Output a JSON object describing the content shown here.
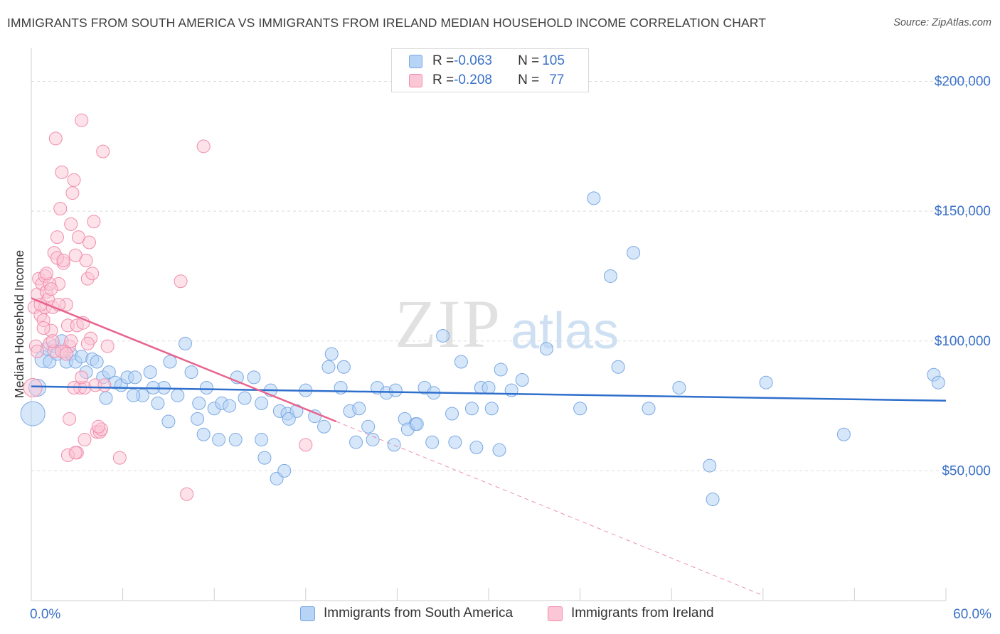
{
  "title": "IMMIGRANTS FROM SOUTH AMERICA VS IMMIGRANTS FROM IRELAND MEDIAN HOUSEHOLD INCOME CORRELATION CHART",
  "source": "Source: ZipAtlas.com",
  "watermark": "ZIPatlas",
  "colors": {
    "blue_fill": "#b7d3f5",
    "blue_stroke": "#7aa8e3",
    "blue_line": "#2f6fcc",
    "pink_fill": "#fbc6d6",
    "pink_stroke": "#f08cab",
    "pink_line": "#e8648e",
    "axis_label": "#3a71c9",
    "grid": "#dcdcdc"
  },
  "legend": {
    "rows": [
      {
        "r_label": "R = ",
        "r_value": "-0.063",
        "n_label": "N = ",
        "n_value": "105"
      },
      {
        "r_label": "R = ",
        "r_value": "-0.208",
        "n_label": "N = ",
        "n_value": "77"
      }
    ]
  },
  "bottom_legend": {
    "blue": "Immigrants from South America",
    "pink": "Immigrants from Ireland"
  },
  "chart_data": {
    "type": "scatter",
    "ylabel": "Median Household Income",
    "xlim": [
      0,
      60
    ],
    "ylim": [
      0,
      210000
    ],
    "x_tick_labels": [
      {
        "value": 0,
        "label": "0.0%"
      },
      {
        "value": 60,
        "label": "60.0%"
      }
    ],
    "y_tick_labels": [
      {
        "value": 50000,
        "label": "$50,000"
      },
      {
        "value": 100000,
        "label": "$100,000"
      },
      {
        "value": 150000,
        "label": "$150,000"
      },
      {
        "value": 200000,
        "label": "$200,000"
      }
    ],
    "series": [
      {
        "name": "Immigrants from South America",
        "R": -0.063,
        "N": 105,
        "trend": {
          "x0": 0,
          "y0": 82500,
          "x1": 60,
          "y1": 77000
        },
        "points": [
          [
            0.1,
            72000
          ],
          [
            0.4,
            82000
          ],
          [
            0.8,
            93000
          ],
          [
            1.0,
            97000
          ],
          [
            1.2,
            92000
          ],
          [
            1.5,
            98000
          ],
          [
            1.7,
            95000
          ],
          [
            2.0,
            100000
          ],
          [
            2.3,
            92000
          ],
          [
            2.6,
            95000
          ],
          [
            2.9,
            92000
          ],
          [
            3.3,
            94000
          ],
          [
            3.6,
            88000
          ],
          [
            4.0,
            93000
          ],
          [
            4.3,
            92000
          ],
          [
            4.7,
            86000
          ],
          [
            5.1,
            88000
          ],
          [
            5.5,
            84000
          ],
          [
            5.9,
            83000
          ],
          [
            6.3,
            86000
          ],
          [
            6.8,
            86000
          ],
          [
            7.3,
            79000
          ],
          [
            7.8,
            88000
          ],
          [
            8.3,
            76000
          ],
          [
            8.7,
            82000
          ],
          [
            9.1,
            92000
          ],
          [
            9.6,
            79000
          ],
          [
            10.1,
            99000
          ],
          [
            10.5,
            88000
          ],
          [
            11.0,
            76000
          ],
          [
            11.5,
            82000
          ],
          [
            12.0,
            74000
          ],
          [
            12.5,
            76000
          ],
          [
            13.0,
            75000
          ],
          [
            13.5,
            86000
          ],
          [
            14.0,
            78000
          ],
          [
            14.6,
            86000
          ],
          [
            15.1,
            76000
          ],
          [
            15.7,
            81000
          ],
          [
            16.3,
            73000
          ],
          [
            16.8,
            72000
          ],
          [
            17.4,
            73000
          ],
          [
            18.0,
            81000
          ],
          [
            18.6,
            71000
          ],
          [
            19.2,
            67000
          ],
          [
            19.7,
            95000
          ],
          [
            20.3,
            82000
          ],
          [
            20.9,
            73000
          ],
          [
            21.5,
            74000
          ],
          [
            22.1,
            67000
          ],
          [
            22.7,
            82000
          ],
          [
            23.3,
            80000
          ],
          [
            23.9,
            81000
          ],
          [
            24.5,
            70000
          ],
          [
            25.2,
            68000
          ],
          [
            25.8,
            82000
          ],
          [
            26.4,
            80000
          ],
          [
            27.0,
            102000
          ],
          [
            27.6,
            72000
          ],
          [
            28.2,
            92000
          ],
          [
            28.9,
            74000
          ],
          [
            29.5,
            82000
          ],
          [
            30.2,
            74000
          ],
          [
            30.8,
            89000
          ],
          [
            31.5,
            81000
          ],
          [
            32.2,
            85000
          ],
          [
            9.0,
            69000
          ],
          [
            11.3,
            64000
          ],
          [
            12.3,
            62000
          ],
          [
            13.4,
            62000
          ],
          [
            15.1,
            62000
          ],
          [
            15.3,
            55000
          ],
          [
            16.1,
            47000
          ],
          [
            16.6,
            50000
          ],
          [
            21.3,
            61000
          ],
          [
            22.4,
            62000
          ],
          [
            23.8,
            60000
          ],
          [
            24.7,
            66000
          ],
          [
            26.3,
            61000
          ],
          [
            27.8,
            61000
          ],
          [
            29.2,
            59000
          ],
          [
            30.7,
            58000
          ],
          [
            19.5,
            90000
          ],
          [
            20.5,
            90000
          ],
          [
            4.9,
            78000
          ],
          [
            6.7,
            79000
          ],
          [
            8.0,
            82000
          ],
          [
            16.9,
            70000
          ],
          [
            10.9,
            70000
          ],
          [
            30.0,
            82000
          ],
          [
            25.3,
            68000
          ],
          [
            33.8,
            97000
          ],
          [
            36.0,
            74000
          ],
          [
            36.9,
            155000
          ],
          [
            38.0,
            125000
          ],
          [
            38.5,
            90000
          ],
          [
            39.5,
            134000
          ],
          [
            40.5,
            74000
          ],
          [
            42.5,
            82000
          ],
          [
            44.5,
            52000
          ],
          [
            44.7,
            39000
          ],
          [
            48.2,
            84000
          ],
          [
            53.3,
            64000
          ],
          [
            59.2,
            87000
          ],
          [
            59.5,
            84000
          ]
        ]
      },
      {
        "name": "Immigrants from Ireland",
        "R": -0.208,
        "N": 77,
        "trend": {
          "x0": 0,
          "y0": 116500,
          "x1": 20,
          "y1": 69000,
          "dash_to_x": 48,
          "dash_to_y": 2000
        },
        "points": [
          [
            0.1,
            82000
          ],
          [
            0.2,
            113000
          ],
          [
            0.3,
            98000
          ],
          [
            0.4,
            118000
          ],
          [
            0.5,
            124000
          ],
          [
            0.6,
            110000
          ],
          [
            0.7,
            122000
          ],
          [
            0.8,
            108000
          ],
          [
            0.9,
            113000
          ],
          [
            1.0,
            119000
          ],
          [
            1.1,
            116000
          ],
          [
            1.2,
            99000
          ],
          [
            1.3,
            104000
          ],
          [
            1.4,
            113000
          ],
          [
            1.5,
            134000
          ],
          [
            1.6,
            178000
          ],
          [
            1.7,
            140000
          ],
          [
            1.8,
            122000
          ],
          [
            1.9,
            151000
          ],
          [
            2.0,
            165000
          ],
          [
            2.1,
            130000
          ],
          [
            2.2,
            96000
          ],
          [
            2.3,
            114000
          ],
          [
            2.4,
            106000
          ],
          [
            2.5,
            98000
          ],
          [
            2.6,
            145000
          ],
          [
            2.7,
            157000
          ],
          [
            2.8,
            162000
          ],
          [
            2.9,
            133000
          ],
          [
            3.0,
            106000
          ],
          [
            3.1,
            140000
          ],
          [
            3.2,
            82000
          ],
          [
            3.3,
            185000
          ],
          [
            3.4,
            107000
          ],
          [
            3.5,
            82000
          ],
          [
            3.6,
            131000
          ],
          [
            3.7,
            124000
          ],
          [
            3.8,
            138000
          ],
          [
            3.9,
            101000
          ],
          [
            4.0,
            126000
          ],
          [
            4.1,
            146000
          ],
          [
            4.2,
            83000
          ],
          [
            4.3,
            65000
          ],
          [
            4.5,
            65000
          ],
          [
            4.6,
            66000
          ],
          [
            4.7,
            173000
          ],
          [
            4.8,
            83000
          ],
          [
            5.0,
            98000
          ],
          [
            2.5,
            70000
          ],
          [
            3.0,
            57000
          ],
          [
            3.5,
            62000
          ],
          [
            4.4,
            67000
          ],
          [
            5.8,
            55000
          ],
          [
            9.8,
            123000
          ],
          [
            10.2,
            41000
          ],
          [
            11.3,
            175000
          ],
          [
            18.0,
            60000
          ],
          [
            0.9,
            125000
          ],
          [
            1.2,
            122000
          ],
          [
            1.5,
            96000
          ],
          [
            2.0,
            96000
          ],
          [
            2.3,
            95000
          ],
          [
            2.6,
            100000
          ],
          [
            1.8,
            114000
          ],
          [
            1.3,
            120000
          ],
          [
            0.6,
            114000
          ],
          [
            2.8,
            82000
          ],
          [
            3.3,
            86000
          ],
          [
            1.0,
            126000
          ],
          [
            1.7,
            132000
          ],
          [
            2.4,
            56000
          ],
          [
            0.4,
            96000
          ],
          [
            0.8,
            105000
          ],
          [
            1.4,
            100000
          ],
          [
            2.9,
            57000
          ],
          [
            3.7,
            99000
          ],
          [
            2.1,
            131000
          ]
        ]
      }
    ]
  }
}
